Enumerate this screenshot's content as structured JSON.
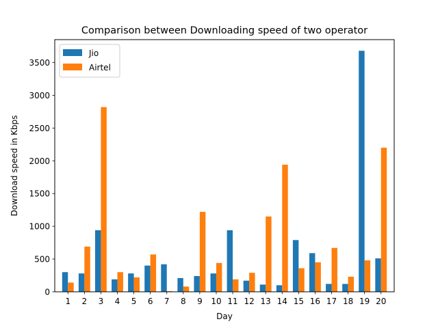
{
  "chart_data": {
    "type": "bar",
    "title": "Comparison between Downloading speed of two operator",
    "xlabel": "Day",
    "ylabel": "Download speed in Kbps",
    "categories": [
      "1",
      "2",
      "3",
      "4",
      "5",
      "6",
      "7",
      "8",
      "9",
      "10",
      "11",
      "12",
      "13",
      "14",
      "15",
      "16",
      "17",
      "18",
      "19",
      "20"
    ],
    "series": [
      {
        "name": "Jio",
        "color": "#1f77b4",
        "values": [
          300,
          280,
          940,
          190,
          280,
          400,
          420,
          210,
          240,
          280,
          940,
          170,
          110,
          100,
          790,
          590,
          120,
          120,
          3680,
          510
        ]
      },
      {
        "name": "Airtel",
        "color": "#ff7f0e",
        "values": [
          140,
          690,
          2820,
          300,
          220,
          570,
          10,
          80,
          1220,
          440,
          190,
          290,
          1150,
          1940,
          360,
          450,
          670,
          230,
          480,
          2200
        ]
      }
    ],
    "ylim": [
      0,
      3850
    ],
    "yticks": [
      0,
      500,
      1000,
      1500,
      2000,
      2500,
      3000,
      3500
    ],
    "grid": false,
    "legend": "top-left"
  }
}
